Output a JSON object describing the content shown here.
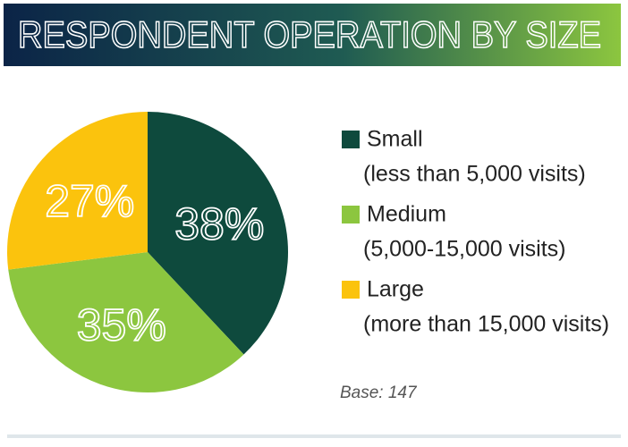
{
  "chart_data": {
    "type": "pie",
    "title": "RESPONDENT OPERATION BY SIZE",
    "categories": [
      "Small",
      "Medium",
      "Large"
    ],
    "descriptions": [
      "(less than 5,000 visits)",
      "(5,000-15,000 visits)",
      "(more than 15,000 visits)"
    ],
    "values": [
      38,
      35,
      27
    ],
    "value_labels": [
      "38%",
      "35%",
      "27%"
    ],
    "colors": [
      "#0e4a3d",
      "#8cc63f",
      "#fbc30d"
    ],
    "annotation": "Base: 147"
  }
}
